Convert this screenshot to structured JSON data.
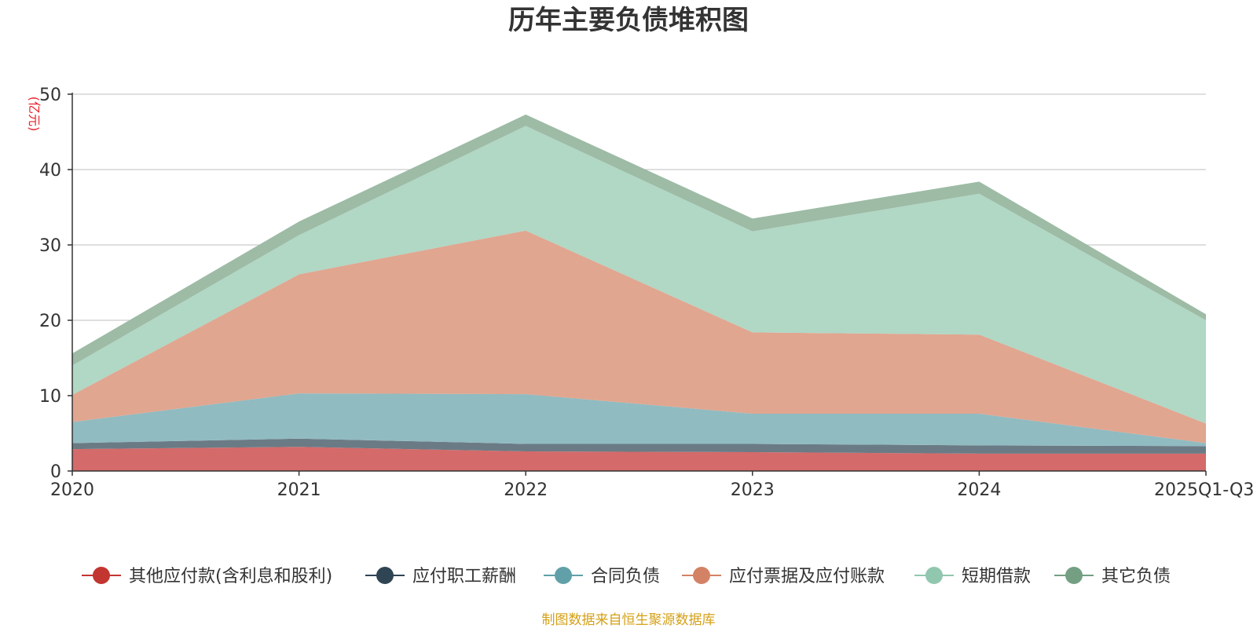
{
  "chart_data": {
    "type": "area",
    "stacked": true,
    "title": "历年主要负债堆积图",
    "ylabel": "(亿元)",
    "xlabel": "",
    "categories": [
      "2020",
      "2021",
      "2022",
      "2023",
      "2024",
      "2025Q1-Q3"
    ],
    "ylim": [
      0,
      50
    ],
    "yticks": [
      0,
      10,
      20,
      30,
      40,
      50
    ],
    "grid": true,
    "legend_position": "bottom",
    "series": [
      {
        "name": "其他应付款(含利息和股利)",
        "color": "#c23531",
        "fill": "#d46a6a",
        "values": [
          2.9,
          3.2,
          2.6,
          2.5,
          2.3,
          2.3
        ]
      },
      {
        "name": "应付职工薪酬",
        "color": "#2f4554",
        "fill": "#6b7b85",
        "values": [
          0.8,
          1.1,
          1.0,
          1.1,
          1.1,
          1.0
        ]
      },
      {
        "name": "合同负债",
        "color": "#61a0a8",
        "fill": "#90bbc1",
        "values": [
          2.8,
          6.0,
          6.6,
          4.0,
          4.2,
          0.4
        ]
      },
      {
        "name": "应付票据及应付账款",
        "color": "#d48265",
        "fill": "#e0a690",
        "values": [
          3.6,
          15.8,
          21.7,
          10.8,
          10.5,
          2.6
        ]
      },
      {
        "name": "短期借款",
        "color": "#91c7ae",
        "fill": "#b1d7c5",
        "values": [
          3.9,
          5.2,
          13.9,
          13.4,
          18.7,
          13.7
        ]
      },
      {
        "name": "其它负债",
        "color": "#749f83",
        "fill": "#9dbba5",
        "values": [
          1.6,
          1.8,
          1.5,
          1.7,
          1.6,
          0.8
        ]
      }
    ]
  },
  "footer": {
    "source": "制图数据来自恒生聚源数据库"
  }
}
